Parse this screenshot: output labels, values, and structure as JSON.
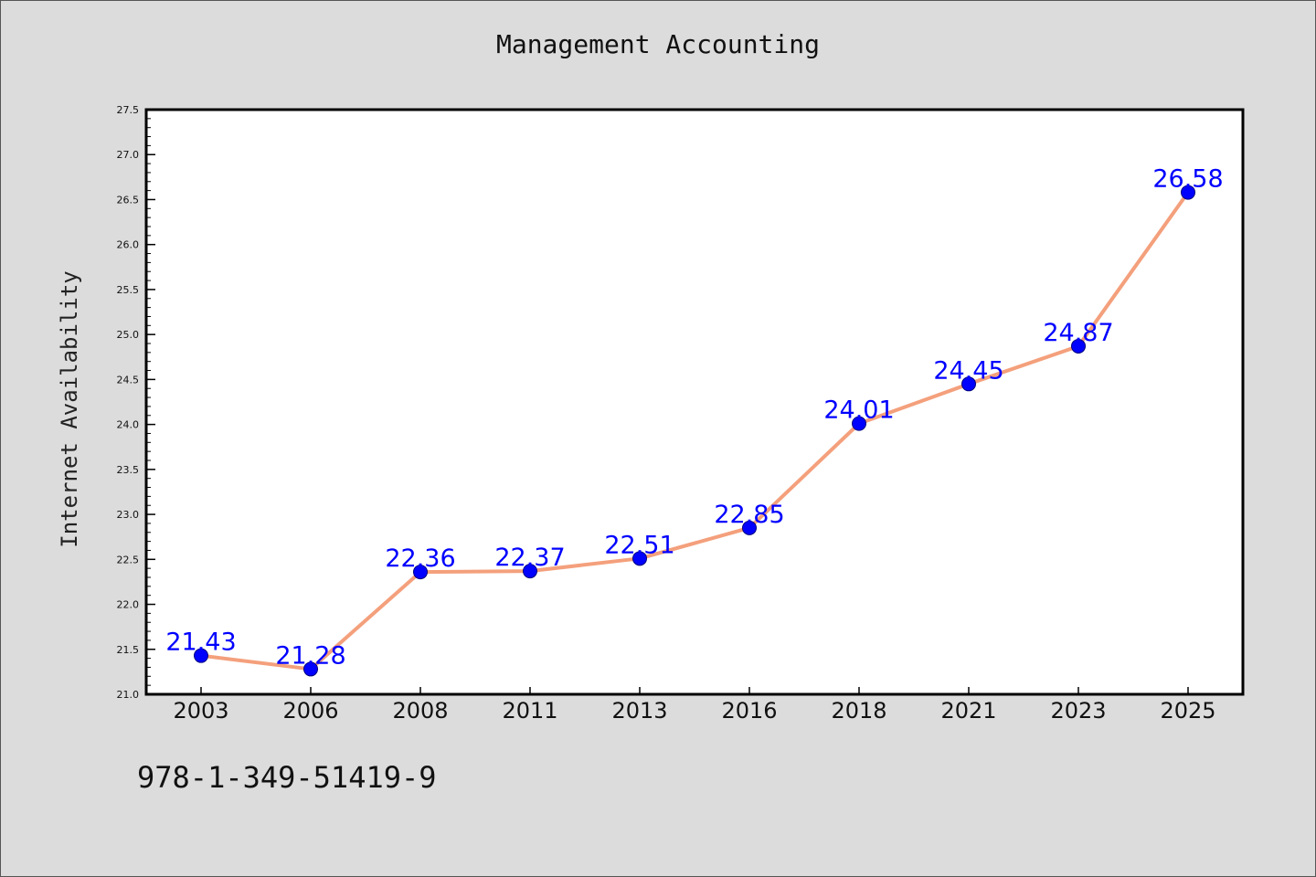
{
  "chart_data": {
    "type": "line",
    "title": "Management Accounting",
    "xlabel": "",
    "ylabel": "Internet Availability",
    "categories": [
      "2003",
      "2006",
      "2008",
      "2011",
      "2013",
      "2016",
      "2018",
      "2021",
      "2023",
      "2025"
    ],
    "series": [
      {
        "values": [
          21.43,
          21.28,
          22.36,
          22.37,
          22.51,
          22.85,
          24.01,
          24.45,
          24.87,
          26.58
        ],
        "labels": [
          "21.43",
          "21.28",
          "22.36",
          "22.37",
          "22.51",
          "22.85",
          "24.01",
          "24.45",
          "24.87",
          "26.58"
        ]
      }
    ],
    "ylim": [
      21.0,
      27.5
    ],
    "y_major_ticks": [
      "21.0",
      "21.5",
      "22.0",
      "22.5",
      "23.0",
      "23.5",
      "24.0",
      "24.5",
      "25.0",
      "25.5",
      "26.0",
      "26.5",
      "27.0",
      "27.5"
    ],
    "y_minor_step": 0.1,
    "grid": false,
    "legend": "none",
    "colors": {
      "line": "#f4a07c",
      "marker": "#0000ff",
      "marker_edge": "#000080",
      "data_label": "#0000ff",
      "background": "#dcdcdc",
      "plot_area": "#ffffff"
    }
  },
  "footer": {
    "isbn": "978-1-349-51419-9"
  }
}
